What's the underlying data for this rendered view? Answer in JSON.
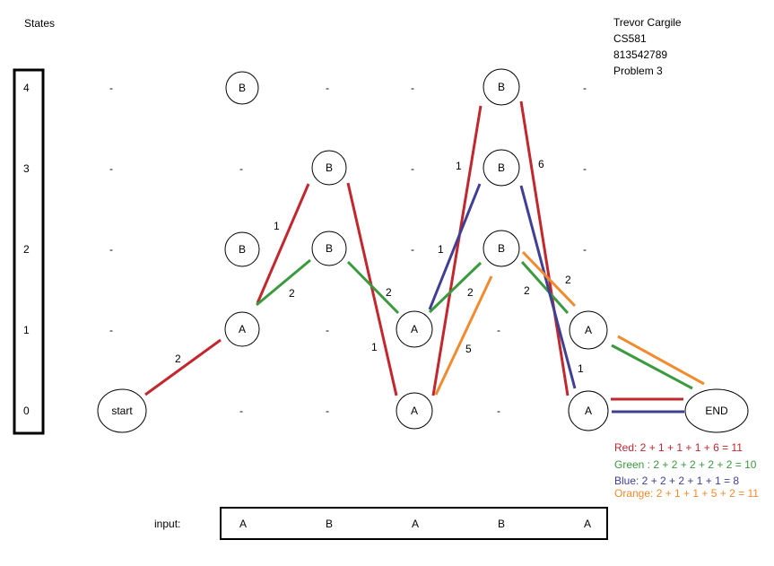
{
  "title": "States",
  "header": {
    "name": "Trevor Cargile",
    "course": "CS581",
    "id": "813542789",
    "problem": "Problem 3"
  },
  "state_labels": [
    "4",
    "3",
    "2",
    "1",
    "0"
  ],
  "dash": "-",
  "nodes": {
    "start": "start",
    "end": "END",
    "A": "A",
    "B": "B"
  },
  "weights": {
    "start_a": "2",
    "a_b3": "1",
    "a_b2": "2",
    "b_to_a1": "2",
    "b3_to_a0": "1",
    "a1_to_b3": "1",
    "a0_to_b4": "1",
    "b2_to_a1": "2",
    "a0_to_b2": "5",
    "b4_to_a0": "6",
    "b2_to_a1_orange": "2",
    "b2_to_a1_green": "2"
  },
  "input": {
    "label": "input:",
    "symbols": [
      "A",
      "B",
      "A",
      "B",
      "A"
    ]
  },
  "sums": {
    "red": "Red: 2 + 1 + 1 + 1 + 6 = 11",
    "green": "Green : 2 + 2 + 2 + 2 + 2 = 10",
    "blue": "Blue: 2 + 2 + 2 + 1 + 1 = 8",
    "orange": "Orange: 2 + 1 + 1 + 5 + 2 = 11"
  },
  "colors": {
    "red": "#c1272d",
    "green": "#3a9a3e",
    "blue": "#3f3f94",
    "orange": "#f28a2e"
  }
}
